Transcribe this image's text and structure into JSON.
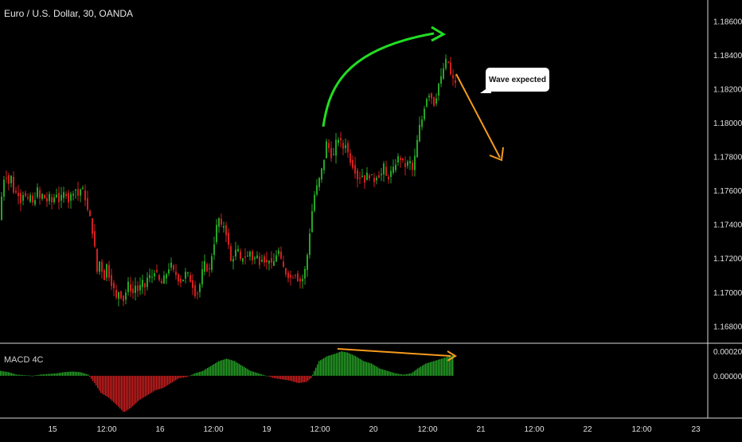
{
  "chart": {
    "title": "Euro / U.S. Dollar, 30, OANDA",
    "indicator_title": "MACD 4C",
    "annotation": "Wave expected"
  },
  "colors": {
    "background": "#000000",
    "up": "#26a526",
    "down": "#d11f1f",
    "up_arrow": "#22dd22",
    "down_arrow": "#f59a1c",
    "axis_text": "#e0e0e0",
    "separator": "#d8d8d8"
  },
  "chart_data": [
    {
      "type": "candlestick",
      "title": "Euro / U.S. Dollar, 30, OANDA",
      "ylim": [
        1.1675,
        1.187
      ],
      "y_tick_labels": [
        "1.18600",
        "1.18400",
        "1.18200",
        "1.18000",
        "1.17800",
        "1.17600",
        "1.17400",
        "1.17200",
        "1.17000",
        "1.16800"
      ],
      "y_tick_values": [
        1.186,
        1.184,
        1.182,
        1.18,
        1.178,
        1.176,
        1.174,
        1.172,
        1.17,
        1.168
      ],
      "x_tick_labels": [
        "15",
        "12:00",
        "16",
        "12:00",
        "19",
        "12:00",
        "20",
        "12:00",
        "21",
        "12:00",
        "22",
        "12:00",
        "23"
      ],
      "grid": false,
      "price_path": [
        [
          0,
          1.1738
        ],
        [
          3,
          1.1752
        ],
        [
          6,
          1.1765
        ],
        [
          9,
          1.1772
        ],
        [
          12,
          1.1763
        ],
        [
          16,
          1.1768
        ],
        [
          20,
          1.1757
        ],
        [
          24,
          1.176
        ],
        [
          28,
          1.1754
        ],
        [
          32,
          1.176
        ],
        [
          36,
          1.1752
        ],
        [
          40,
          1.1757
        ],
        [
          44,
          1.175
        ],
        [
          48,
          1.1762
        ],
        [
          52,
          1.1755
        ],
        [
          56,
          1.1758
        ],
        [
          60,
          1.1753
        ],
        [
          64,
          1.1756
        ],
        [
          68,
          1.1752
        ],
        [
          72,
          1.176
        ],
        [
          76,
          1.1754
        ],
        [
          80,
          1.1756
        ],
        [
          84,
          1.176
        ],
        [
          88,
          1.1754
        ],
        [
          92,
          1.1758
        ],
        [
          96,
          1.1762
        ],
        [
          100,
          1.1757
        ],
        [
          104,
          1.1762
        ],
        [
          108,
          1.1758
        ],
        [
          112,
          1.1748
        ],
        [
          116,
          1.1742
        ],
        [
          120,
          1.173
        ],
        [
          124,
          1.1712
        ],
        [
          128,
          1.172
        ],
        [
          132,
          1.1706
        ],
        [
          136,
          1.1716
        ],
        [
          140,
          1.1708
        ],
        [
          144,
          1.1703
        ],
        [
          148,
          1.1696
        ],
        [
          152,
          1.1702
        ],
        [
          156,
          1.1694
        ],
        [
          160,
          1.17
        ],
        [
          164,
          1.1706
        ],
        [
          168,
          1.1698
        ],
        [
          172,
          1.1704
        ],
        [
          176,
          1.17
        ],
        [
          180,
          1.1706
        ],
        [
          184,
          1.1703
        ],
        [
          188,
          1.171
        ],
        [
          192,
          1.1708
        ],
        [
          196,
          1.1713
        ],
        [
          200,
          1.1709
        ],
        [
          204,
          1.1704
        ],
        [
          208,
          1.1708
        ],
        [
          212,
          1.1712
        ],
        [
          216,
          1.1717
        ],
        [
          220,
          1.1712
        ],
        [
          224,
          1.171
        ],
        [
          228,
          1.1706
        ],
        [
          232,
          1.1708
        ],
        [
          236,
          1.1712
        ],
        [
          240,
          1.1708
        ],
        [
          244,
          1.1704
        ],
        [
          248,
          1.1698
        ],
        [
          252,
          1.1702
        ],
        [
          256,
          1.1712
        ],
        [
          260,
          1.1718
        ],
        [
          264,
          1.171
        ],
        [
          268,
          1.1722
        ],
        [
          272,
          1.1732
        ],
        [
          276,
          1.1745
        ],
        [
          280,
          1.1738
        ],
        [
          284,
          1.174
        ],
        [
          288,
          1.173
        ],
        [
          292,
          1.1718
        ],
        [
          296,
          1.1722
        ],
        [
          300,
          1.1726
        ],
        [
          304,
          1.1718
        ],
        [
          308,
          1.1722
        ],
        [
          312,
          1.172
        ],
        [
          316,
          1.1724
        ],
        [
          320,
          1.1718
        ],
        [
          324,
          1.1722
        ],
        [
          328,
          1.1718
        ],
        [
          332,
          1.1722
        ],
        [
          336,
          1.1716
        ],
        [
          340,
          1.172
        ],
        [
          344,
          1.1714
        ],
        [
          348,
          1.1722
        ],
        [
          352,
          1.1724
        ],
        [
          356,
          1.1716
        ],
        [
          360,
          1.1712
        ],
        [
          364,
          1.171
        ],
        [
          368,
          1.1708
        ],
        [
          372,
          1.1712
        ],
        [
          376,
          1.1708
        ],
        [
          380,
          1.1706
        ],
        [
          384,
          1.171
        ],
        [
          388,
          1.1722
        ],
        [
          392,
          1.174
        ],
        [
          396,
          1.1756
        ],
        [
          400,
          1.1762
        ],
        [
          404,
          1.1768
        ],
        [
          408,
          1.1776
        ],
        [
          412,
          1.1788
        ],
        [
          416,
          1.1784
        ],
        [
          420,
          1.1778
        ],
        [
          424,
          1.1788
        ],
        [
          428,
          1.1792
        ],
        [
          432,
          1.1784
        ],
        [
          436,
          1.1788
        ],
        [
          440,
          1.178
        ],
        [
          444,
          1.1776
        ],
        [
          448,
          1.1772
        ],
        [
          452,
          1.1766
        ],
        [
          456,
          1.177
        ],
        [
          460,
          1.1766
        ],
        [
          464,
          1.177
        ],
        [
          468,
          1.1768
        ],
        [
          472,
          1.1766
        ],
        [
          476,
          1.177
        ],
        [
          480,
          1.1768
        ],
        [
          484,
          1.1774
        ],
        [
          488,
          1.1766
        ],
        [
          492,
          1.177
        ],
        [
          496,
          1.1772
        ],
        [
          500,
          1.1778
        ],
        [
          504,
          1.178
        ],
        [
          508,
          1.1776
        ],
        [
          512,
          1.1774
        ],
        [
          516,
          1.1778
        ],
        [
          520,
          1.1772
        ],
        [
          524,
          1.1782
        ],
        [
          528,
          1.1796
        ],
        [
          532,
          1.1802
        ],
        [
          536,
          1.1812
        ],
        [
          540,
          1.1818
        ],
        [
          544,
          1.1815
        ],
        [
          548,
          1.181
        ],
        [
          552,
          1.1822
        ],
        [
          556,
          1.1826
        ],
        [
          560,
          1.1834
        ],
        [
          564,
          1.1838
        ],
        [
          568,
          1.1828
        ],
        [
          572,
          1.1824
        ]
      ]
    },
    {
      "type": "histogram",
      "title": "MACD 4C",
      "ylim": [
        -0.00032,
        0.00024
      ],
      "y_tick_labels": [
        "0.00020",
        "0.00000"
      ],
      "y_tick_values": [
        0.0002,
        0.0
      ],
      "segments": [
        [
          0,
          4e-05
        ],
        [
          10,
          3e-05
        ],
        [
          20,
          1e-05
        ],
        [
          30,
          5e-06
        ],
        [
          40,
          0.0
        ],
        [
          50,
          1e-05
        ],
        [
          60,
          1.5e-05
        ],
        [
          70,
          2e-05
        ],
        [
          80,
          3e-05
        ],
        [
          90,
          3.5e-05
        ],
        [
          100,
          3e-05
        ],
        [
          110,
          1e-05
        ],
        [
          118,
          -6e-05
        ],
        [
          126,
          -0.00014
        ],
        [
          136,
          -0.00018
        ],
        [
          146,
          -0.00024
        ],
        [
          155,
          -0.0003
        ],
        [
          164,
          -0.00026
        ],
        [
          174,
          -0.0002
        ],
        [
          184,
          -0.00016
        ],
        [
          194,
          -0.00012
        ],
        [
          204,
          -0.0001
        ],
        [
          214,
          -6e-05
        ],
        [
          224,
          -2e-05
        ],
        [
          234,
          -1e-05
        ],
        [
          244,
          2e-05
        ],
        [
          254,
          4e-05
        ],
        [
          264,
          8e-05
        ],
        [
          274,
          0.00012
        ],
        [
          284,
          0.00014
        ],
        [
          294,
          0.00012
        ],
        [
          304,
          8e-05
        ],
        [
          314,
          4e-05
        ],
        [
          324,
          2e-05
        ],
        [
          334,
          0.0
        ],
        [
          344,
          -2e-05
        ],
        [
          354,
          -3e-05
        ],
        [
          364,
          -4e-05
        ],
        [
          374,
          -6e-05
        ],
        [
          384,
          -5e-05
        ],
        [
          390,
          -2e-05
        ],
        [
          394,
          4e-05
        ],
        [
          400,
          0.00012
        ],
        [
          410,
          0.00016
        ],
        [
          420,
          0.00018
        ],
        [
          428,
          0.0002
        ],
        [
          436,
          0.00019
        ],
        [
          446,
          0.00016
        ],
        [
          456,
          0.00012
        ],
        [
          466,
          0.0001
        ],
        [
          476,
          6e-05
        ],
        [
          486,
          4e-05
        ],
        [
          496,
          2e-05
        ],
        [
          506,
          1e-05
        ],
        [
          516,
          2e-05
        ],
        [
          524,
          6e-05
        ],
        [
          534,
          0.0001
        ],
        [
          544,
          0.00012
        ],
        [
          554,
          0.00014
        ],
        [
          564,
          0.00016
        ],
        [
          569,
          0.00017
        ]
      ]
    }
  ]
}
